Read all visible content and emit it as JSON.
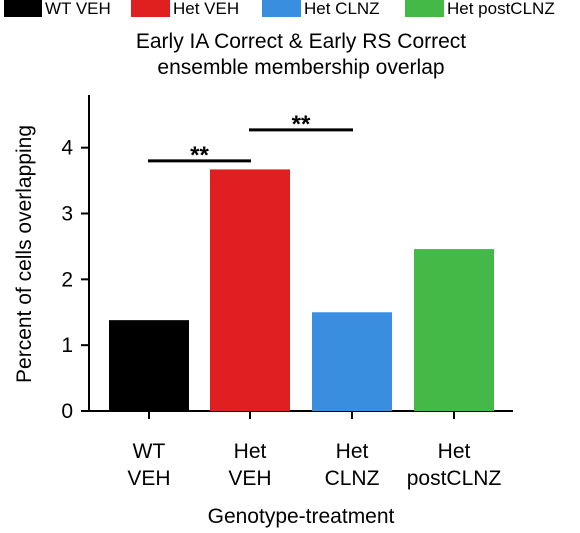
{
  "chart_data": {
    "type": "bar",
    "title_lines": [
      "Early IA Correct & Early RS Correct",
      "ensemble membership overlap"
    ],
    "xlabel": "Genotype-treatment",
    "ylabel": "Percent of cells overlapping",
    "ylim": [
      0,
      4.8
    ],
    "yticks": [
      "0",
      "1",
      "2",
      "3",
      "4"
    ],
    "grid": false,
    "legend_position": "top",
    "categories": [
      {
        "lines": [
          "WT",
          "VEH"
        ]
      },
      {
        "lines": [
          "Het",
          "VEH"
        ]
      },
      {
        "lines": [
          "Het",
          "CLNZ"
        ]
      },
      {
        "lines": [
          "Het",
          "postCLNZ"
        ]
      }
    ],
    "values": [
      1.38,
      3.67,
      1.5,
      2.46
    ],
    "colors": [
      "#000000",
      "#e02020",
      "#3a8ee0",
      "#45b948"
    ],
    "legend": [
      {
        "label": "WT VEH",
        "color": "#000000"
      },
      {
        "label": "Het VEH",
        "color": "#e02020"
      },
      {
        "label": "Het CLNZ",
        "color": "#3a8ee0"
      },
      {
        "label": "Het postCLNZ",
        "color": "#45b948"
      }
    ],
    "significance": [
      {
        "from": 0,
        "to": 1,
        "y": 3.8,
        "label": "**"
      },
      {
        "from": 1,
        "to": 2,
        "y": 4.27,
        "label": "**"
      }
    ]
  }
}
